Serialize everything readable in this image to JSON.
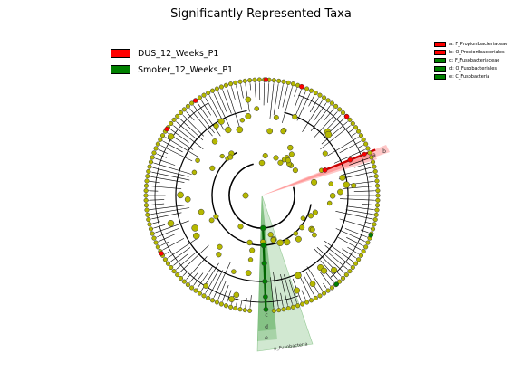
{
  "title": "Significantly Represented Taxa",
  "legend": [
    {
      "label": "DUS_12_Weeks_P1",
      "color": "#ff0000"
    },
    {
      "label": "Smoker_12_Weeks_P1",
      "color": "#008000"
    }
  ],
  "clade_legend": [
    {
      "key": "a",
      "label": "a: F_Propionibacteriaceae",
      "color": "#ff0000"
    },
    {
      "key": "b",
      "label": "b: O_Propionibacteriales",
      "color": "#ff0000"
    },
    {
      "key": "c",
      "label": "c: F_Fusobacteriaceae",
      "color": "#008000"
    },
    {
      "key": "d",
      "label": "d: O_Fusobacteriales",
      "color": "#008000"
    },
    {
      "key": "e",
      "label": "e: C_Fusobacteria",
      "color": "#008000"
    }
  ],
  "sector_labels": {
    "red_a": "a",
    "red_b": "b",
    "green_c": "c",
    "green_d": "d",
    "green_e": "e",
    "phylum": "p_Fusobacteria"
  },
  "colors": {
    "neutral_node": "#b5b800",
    "enriched_dus": "#ff0000",
    "enriched_smoker": "#008000"
  }
}
